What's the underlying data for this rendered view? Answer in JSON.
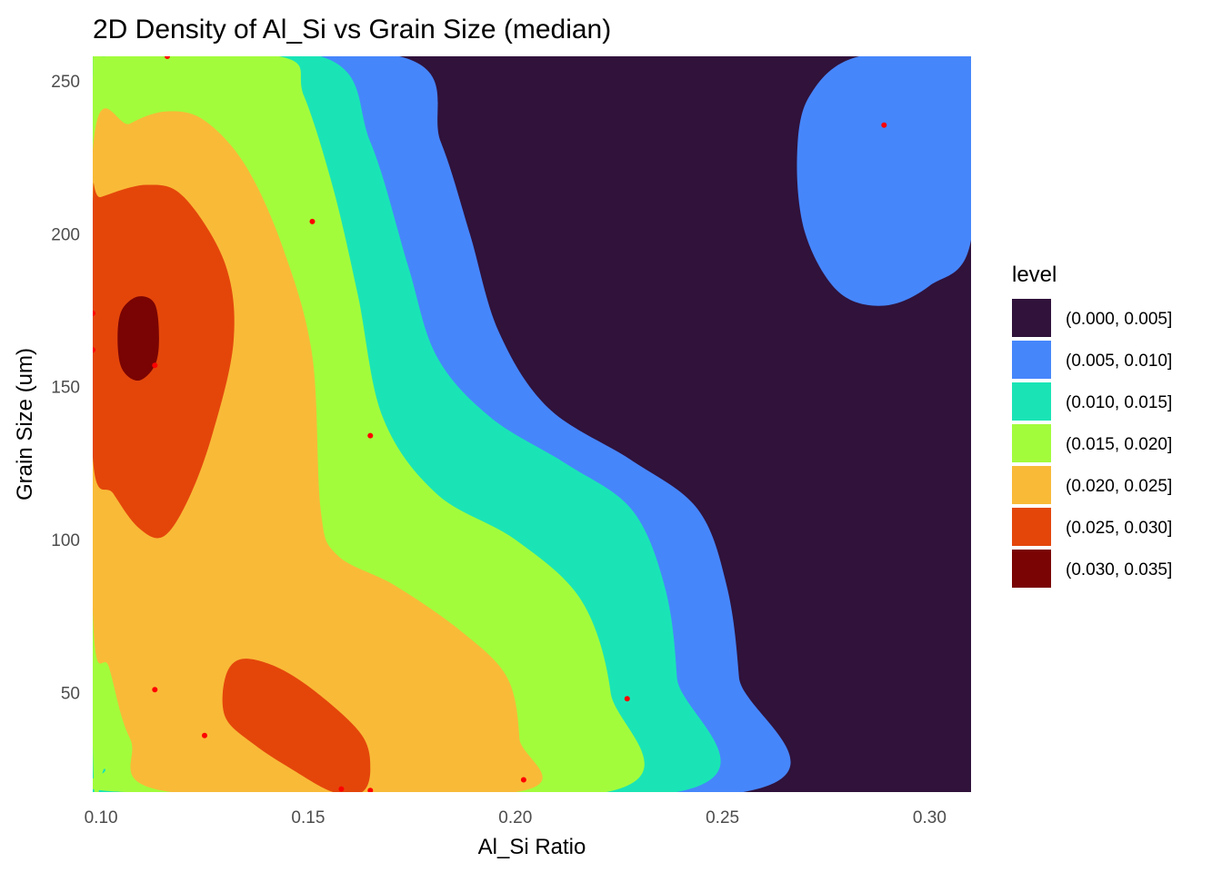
{
  "chart_data": {
    "type": "contour",
    "title": "2D Density of Al_Si vs Grain Size (median)",
    "xlabel": "Al_Si Ratio",
    "ylabel": "Grain Size (um)",
    "xlim": [
      0.098,
      0.31
    ],
    "ylim": [
      17.5,
      258
    ],
    "xticks": [
      0.1,
      0.15,
      0.2,
      0.25,
      0.3
    ],
    "xtick_labels": [
      "0.10",
      "0.15",
      "0.20",
      "0.25",
      "0.30"
    ],
    "yticks": [
      50,
      100,
      150,
      200,
      250
    ],
    "ytick_labels": [
      "50",
      "100",
      "150",
      "200",
      "250"
    ],
    "grid": false,
    "legend": {
      "title": "level",
      "position": "right",
      "entries": [
        {
          "label": "(0.000, 0.005]",
          "color": "#30123b"
        },
        {
          "label": "(0.005, 0.010]",
          "color": "#4686fb"
        },
        {
          "label": "(0.010, 0.015]",
          "color": "#1ae4b6"
        },
        {
          "label": "(0.015, 0.020]",
          "color": "#a2fc3c"
        },
        {
          "label": "(0.020, 0.025]",
          "color": "#f9ba38"
        },
        {
          "label": "(0.025, 0.030]",
          "color": "#e4460a"
        },
        {
          "label": "(0.030, 0.035]",
          "color": "#7a0403"
        }
      ]
    },
    "contours": [
      {
        "level": "(0.000, 0.005]",
        "color": "#30123b",
        "points": [
          [
            0.098,
            17.5
          ],
          [
            0.31,
            17.5
          ],
          [
            0.31,
            258
          ],
          [
            0.098,
            258
          ]
        ]
      },
      {
        "level": "(0.005, 0.010]",
        "color": "#4686fb",
        "points": [
          [
            0.098,
            258
          ],
          [
            0.172,
            258
          ],
          [
            0.182,
            230
          ],
          [
            0.189,
            200
          ],
          [
            0.196,
            168
          ],
          [
            0.208,
            143
          ],
          [
            0.228,
            126
          ],
          [
            0.244,
            110
          ],
          [
            0.251,
            85
          ],
          [
            0.254,
            55
          ],
          [
            0.255,
            17.5
          ],
          [
            0.098,
            17.5
          ]
        ]
      },
      {
        "level": "(0.005, 0.010]",
        "color": "#4686fb",
        "points": [
          [
            0.283,
            258
          ],
          [
            0.31,
            258
          ],
          [
            0.31,
            198
          ],
          [
            0.3,
            183
          ],
          [
            0.289,
            176.5
          ],
          [
            0.278,
            181
          ],
          [
            0.27,
            200
          ],
          [
            0.268,
            225
          ],
          [
            0.271,
            245
          ]
        ]
      },
      {
        "level": "(0.010, 0.015]",
        "color": "#1ae4b6",
        "points": [
          [
            0.098,
            258
          ],
          [
            0.153,
            258
          ],
          [
            0.165,
            230
          ],
          [
            0.174,
            190
          ],
          [
            0.181,
            160
          ],
          [
            0.194,
            140
          ],
          [
            0.212,
            125
          ],
          [
            0.228,
            110
          ],
          [
            0.236,
            85
          ],
          [
            0.239,
            55
          ],
          [
            0.239,
            17.5
          ],
          [
            0.098,
            17.5
          ]
        ]
      },
      {
        "level": "(0.015, 0.020]",
        "color": "#a2fc3c",
        "points": [
          [
            0.101,
            258
          ],
          [
            0.143,
            258
          ],
          [
            0.149,
            245
          ],
          [
            0.156,
            215
          ],
          [
            0.162,
            180
          ],
          [
            0.168,
            140
          ],
          [
            0.181,
            115
          ],
          [
            0.2,
            100
          ],
          [
            0.216,
            80
          ],
          [
            0.223,
            50
          ],
          [
            0.222,
            17.5
          ],
          [
            0.106,
            17.5
          ],
          [
            0.101,
            25
          ],
          [
            0.098,
            33
          ],
          [
            0.098,
            250
          ]
        ]
      },
      {
        "level": "(0.020, 0.025]",
        "color": "#f9ba38",
        "points": [
          [
            0.098,
            227
          ],
          [
            0.107,
            236
          ],
          [
            0.116,
            240
          ],
          [
            0.125,
            237
          ],
          [
            0.135,
            222
          ],
          [
            0.144,
            195
          ],
          [
            0.151,
            160
          ],
          [
            0.153,
            110
          ],
          [
            0.157,
            95
          ],
          [
            0.171,
            85
          ],
          [
            0.187,
            70
          ],
          [
            0.198,
            55
          ],
          [
            0.201,
            35
          ],
          [
            0.2,
            17.5
          ],
          [
            0.117,
            17.5
          ],
          [
            0.107,
            35
          ],
          [
            0.102,
            58
          ],
          [
            0.098,
            77
          ]
        ]
      },
      {
        "level": "(0.025, 0.030]",
        "color": "#e4460a",
        "points": [
          [
            0.098,
            127
          ],
          [
            0.103,
            115
          ],
          [
            0.109,
            104
          ],
          [
            0.115,
            101
          ],
          [
            0.121,
            113
          ],
          [
            0.127,
            135
          ],
          [
            0.132,
            165
          ],
          [
            0.13,
            190
          ],
          [
            0.12,
            212
          ],
          [
            0.111,
            216
          ],
          [
            0.1,
            212
          ],
          [
            0.098,
            210
          ]
        ]
      },
      {
        "level": "(0.025, 0.030]",
        "color": "#e4460a",
        "points": [
          [
            0.13,
            55
          ],
          [
            0.134,
            61
          ],
          [
            0.143,
            58
          ],
          [
            0.153,
            49
          ],
          [
            0.163,
            36
          ],
          [
            0.165,
            25
          ],
          [
            0.163,
            17.5
          ],
          [
            0.156,
            17.5
          ],
          [
            0.146,
            25
          ],
          [
            0.137,
            33
          ],
          [
            0.13,
            42
          ]
        ]
      },
      {
        "level": "(0.030, 0.035]",
        "color": "#7a0403",
        "points": [
          [
            0.104,
            166
          ],
          [
            0.105,
            175
          ],
          [
            0.109,
            179.5
          ],
          [
            0.113,
            177
          ],
          [
            0.114,
            166
          ],
          [
            0.113,
            157
          ],
          [
            0.109,
            152
          ],
          [
            0.105,
            156
          ]
        ]
      }
    ],
    "points": [
      {
        "x": 0.116,
        "y": 258
      },
      {
        "x": 0.289,
        "y": 235.5
      },
      {
        "x": 0.151,
        "y": 204
      },
      {
        "x": 0.098,
        "y": 174
      },
      {
        "x": 0.098,
        "y": 162
      },
      {
        "x": 0.113,
        "y": 157
      },
      {
        "x": 0.165,
        "y": 134
      },
      {
        "x": 0.113,
        "y": 51
      },
      {
        "x": 0.227,
        "y": 48
      },
      {
        "x": 0.125,
        "y": 36
      },
      {
        "x": 0.202,
        "y": 21.5
      },
      {
        "x": 0.158,
        "y": 18.5
      },
      {
        "x": 0.165,
        "y": 18
      }
    ],
    "point_color": "#ff0000"
  }
}
